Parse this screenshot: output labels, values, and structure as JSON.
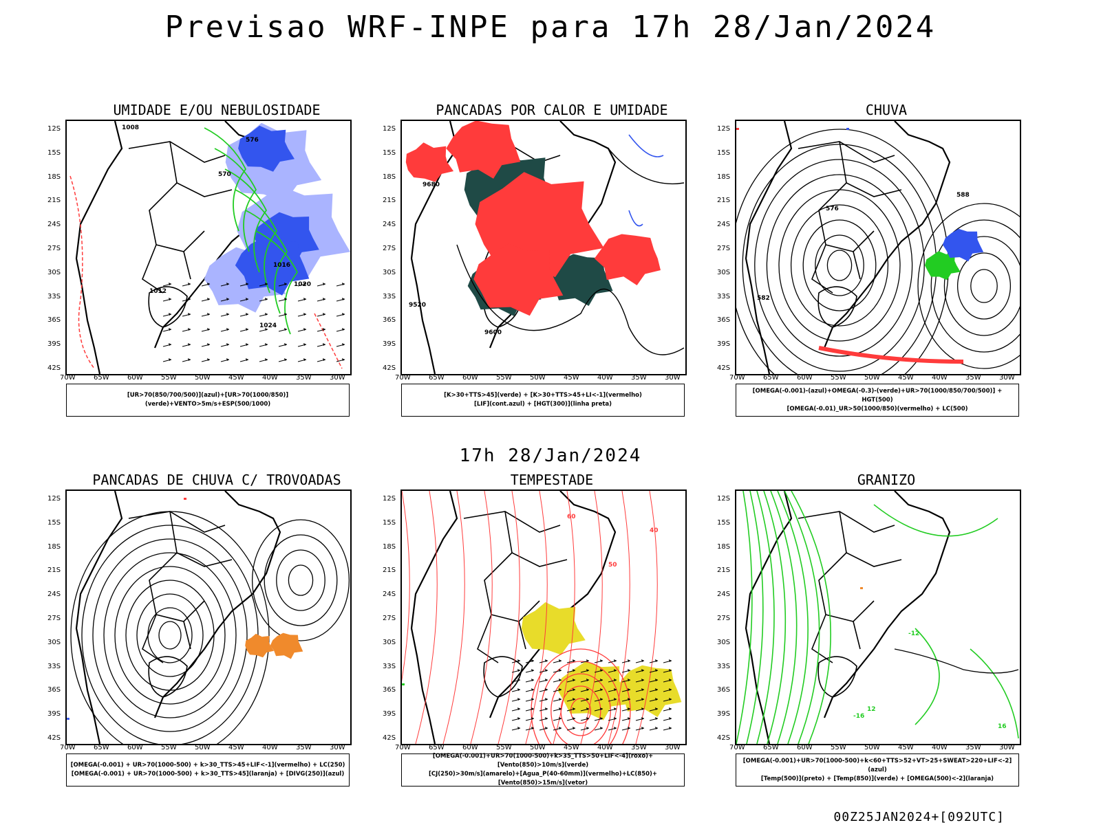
{
  "header": {
    "title": "Previsao WRF-INPE  para 17h 28/Jan/2024",
    "mid_time": "17h 28/Jan/2024",
    "run_info": "00Z25JAN2024+[092UTC]"
  },
  "axes": {
    "lat_ticks": [
      "12S",
      "15S",
      "18S",
      "21S",
      "24S",
      "27S",
      "30S",
      "33S",
      "36S",
      "39S",
      "42S"
    ],
    "lon_ticks": [
      "70W",
      "65W",
      "60W",
      "55W",
      "50W",
      "45W",
      "40W",
      "35W",
      "30W"
    ]
  },
  "colors": {
    "blue": "#3355ee",
    "light_blue": "#aab4ff",
    "green": "#22cc22",
    "red": "#ff3b3b",
    "dark_teal": "#1f4a46",
    "yellow": "#e8dc2a",
    "orange": "#f08a2c"
  },
  "panels": [
    {
      "id": "umidade",
      "title": "UMIDADE E/OU NEBULOSIDADE",
      "legend": [
        "[UR>70(850/700/500)](azul)+[UR>70(1000/850)](verde)+VENTO>5m/s+ESP(500/1000)"
      ],
      "contour_labels": [
        "1008",
        "1012",
        "1016",
        "1020",
        "1024",
        "570",
        "576"
      ]
    },
    {
      "id": "pancadas-calor",
      "title": "PANCADAS POR CALOR E UMIDADE",
      "legend": [
        "[K>30+TTS>45](verde) + [K>30+TTS>45+LI<-1](vermelho)",
        "[LIF](cont.azul) + [HGT(300)](linha preta)"
      ],
      "contour_labels": [
        "9520",
        "9600",
        "9680"
      ]
    },
    {
      "id": "chuva",
      "title": "CHUVA",
      "legend": [
        "[OMEGA(-0.001)-(azul)+OMEGA(-0.3)-(verde)+UR>70(1000/850/700/500)] + HGT(500)",
        "[OMEGA(-0.01)_UR>50(1000/850)(vermelho) + LC(500)"
      ],
      "contour_labels": [
        "582",
        "576",
        "588"
      ]
    },
    {
      "id": "trovoadas",
      "title": "PANCADAS DE CHUVA C/ TROVOADAS",
      "legend": [
        "[OMEGA(-0.001) + UR>70(1000-500) + k>30_TTS>45+LIF<-1](vermelho) + LC(250)",
        "[OMEGA(-0.001) + UR>70(1000-500) + k>30_TTS>45](laranja) + [DIVG(250)](azul)"
      ],
      "contour_labels": []
    },
    {
      "id": "tempestade",
      "title": "TEMPESTADE",
      "legend": [
        "[OMEGA(-0.001)+UR>70(1000-500)+k>35_TTS>50+LIF<-4](roxo)+[Vento(850)>10m/s](verde)",
        "[CJ(250)>30m/s](amarelo)+[Agua_P(40-60mm)](vermelho)+LC(850)+[Vento(850)>15m/s](vetor)"
      ],
      "contour_labels": [
        "40",
        "50",
        "60"
      ]
    },
    {
      "id": "granizo",
      "title": "GRANIZO",
      "legend": [
        "[OMEGA(-0.001)+UR>70(1000-500)+k<60+TTS>52+VT>25+SWEAT>220+LIF<-2](azul)",
        "[Temp(500)](preto) + [Temp(850)](verde) + [OMEGA(500)<-2](laranja)"
      ],
      "contour_labels": [
        "-12",
        "-16",
        "12",
        "16"
      ]
    }
  ]
}
